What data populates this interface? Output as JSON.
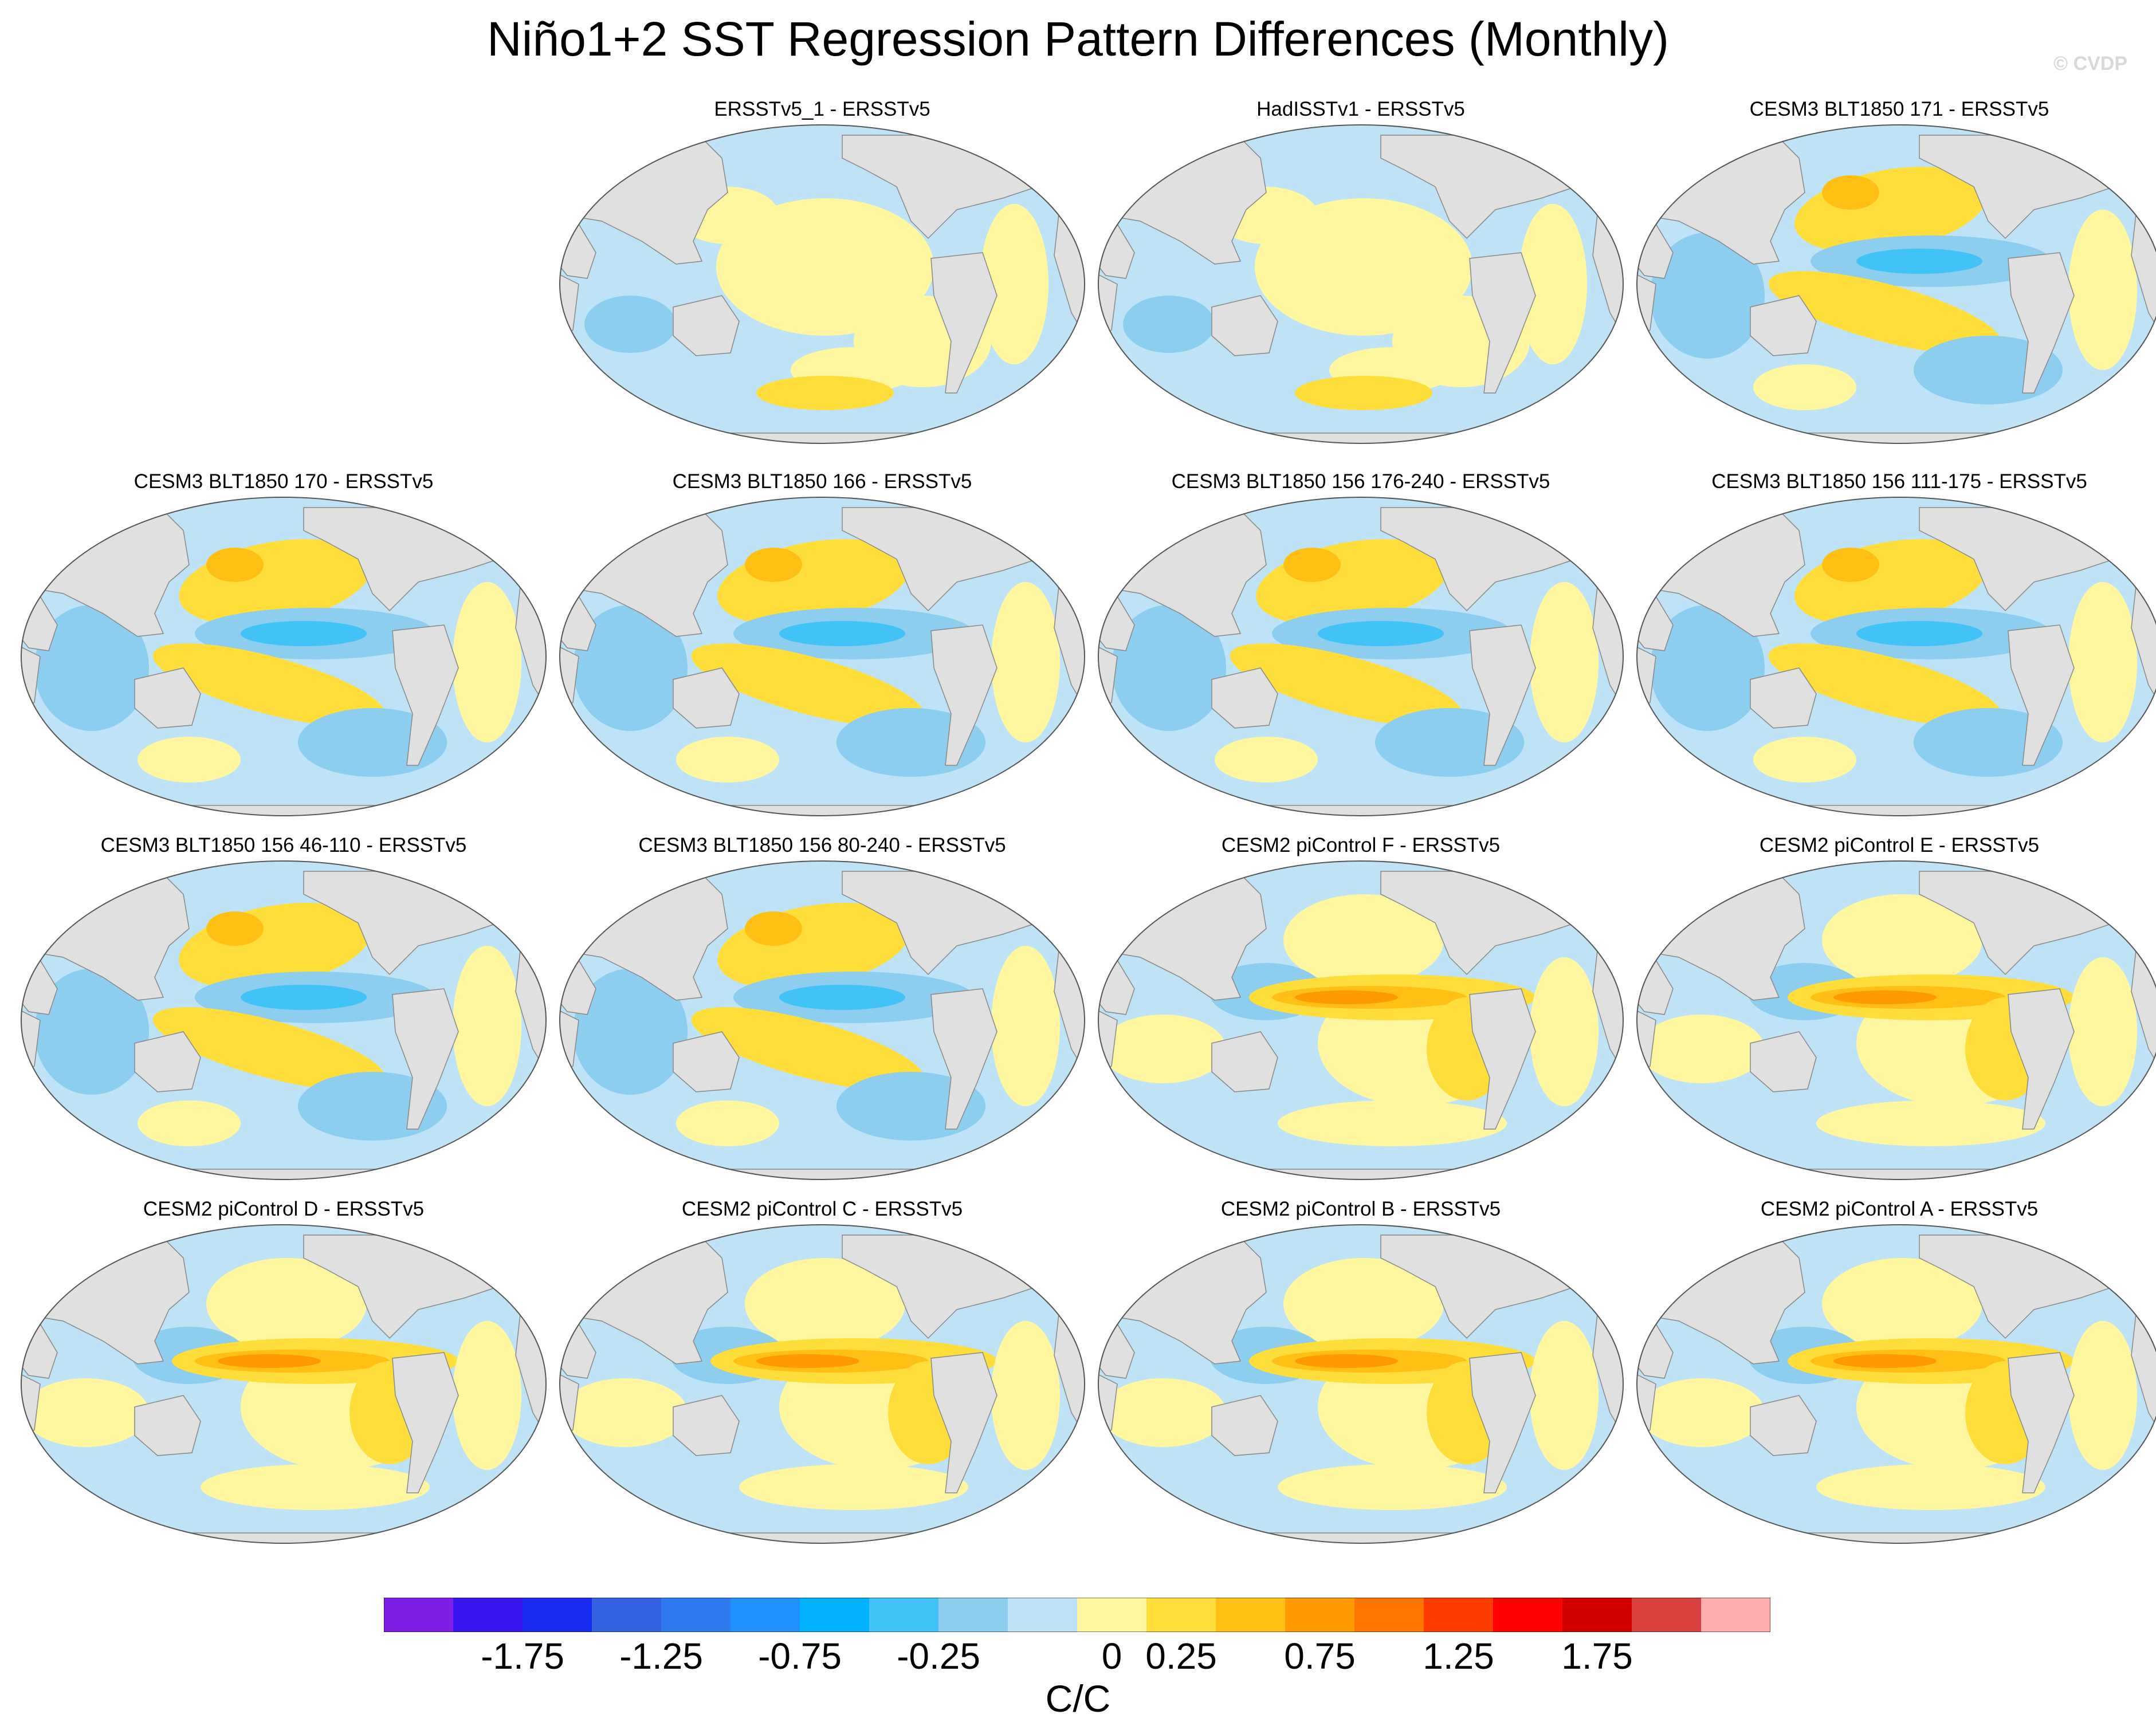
{
  "title": "Niño1+2 SST Regression Pattern Differences (Monthly)",
  "watermark": "© CVDP",
  "panels": [
    {
      "title": "ERSSTv5_1 - ERSSTv5",
      "pattern": "weak-mixed"
    },
    {
      "title": "HadISSTv1 - ERSSTv5",
      "pattern": "weak-mixed"
    },
    {
      "title": "CESM3 BLT1850 171 - ERSSTv5",
      "pattern": "cool-equator"
    },
    {
      "title": "CESM3 BLT1850 170 - ERSSTv5",
      "pattern": "cool-equator"
    },
    {
      "title": "CESM3 BLT1850 166 - ERSSTv5",
      "pattern": "cool-equator"
    },
    {
      "title": "CESM3 BLT1850 156 176-240 - ERSSTv5",
      "pattern": "cool-equator"
    },
    {
      "title": "CESM3 BLT1850 156 111-175 - ERSSTv5",
      "pattern": "cool-equator"
    },
    {
      "title": "CESM3 BLT1850 156 46-110 - ERSSTv5",
      "pattern": "cool-equator"
    },
    {
      "title": "CESM3 BLT1850 156 80-240 - ERSSTv5",
      "pattern": "cool-equator"
    },
    {
      "title": "CESM2 piControl F - ERSSTv5",
      "pattern": "warm-equator"
    },
    {
      "title": "CESM2 piControl E - ERSSTv5",
      "pattern": "warm-equator"
    },
    {
      "title": "CESM2 piControl D - ERSSTv5",
      "pattern": "warm-equator"
    },
    {
      "title": "CESM2 piControl C - ERSSTv5",
      "pattern": "warm-equator"
    },
    {
      "title": "CESM2 piControl B - ERSSTv5",
      "pattern": "warm-equator"
    },
    {
      "title": "CESM2 piControl A - ERSSTv5",
      "pattern": "warm-equator"
    }
  ],
  "colorbar": {
    "units": "C/C",
    "labels": [
      "-1.75",
      "-1.25",
      "-0.75",
      "-0.25",
      "0",
      "0.25",
      "0.75",
      "1.25",
      "1.75"
    ],
    "colors": [
      "#7f1ee6",
      "#3a14f0",
      "#1a2cf2",
      "#3462e0",
      "#2e7aee",
      "#1e90ff",
      "#00b2ff",
      "#41c3f8",
      "#8dcdee",
      "#bfe3f6",
      "#fff7a0",
      "#ffdd3a",
      "#ffbf14",
      "#ff9a00",
      "#ff7700",
      "#ff3c00",
      "#ff0000",
      "#d40000",
      "#d94040",
      "#ffb0ae"
    ]
  },
  "map_colors": {
    "land": "#e0e0e0",
    "cool1": "#bfe3f6",
    "cool2": "#8dcdee",
    "cool3": "#41c3f8",
    "warm1": "#fff7a0",
    "warm2": "#ffdd3a",
    "warm3": "#ffbf14",
    "warm4": "#ff9a00"
  }
}
